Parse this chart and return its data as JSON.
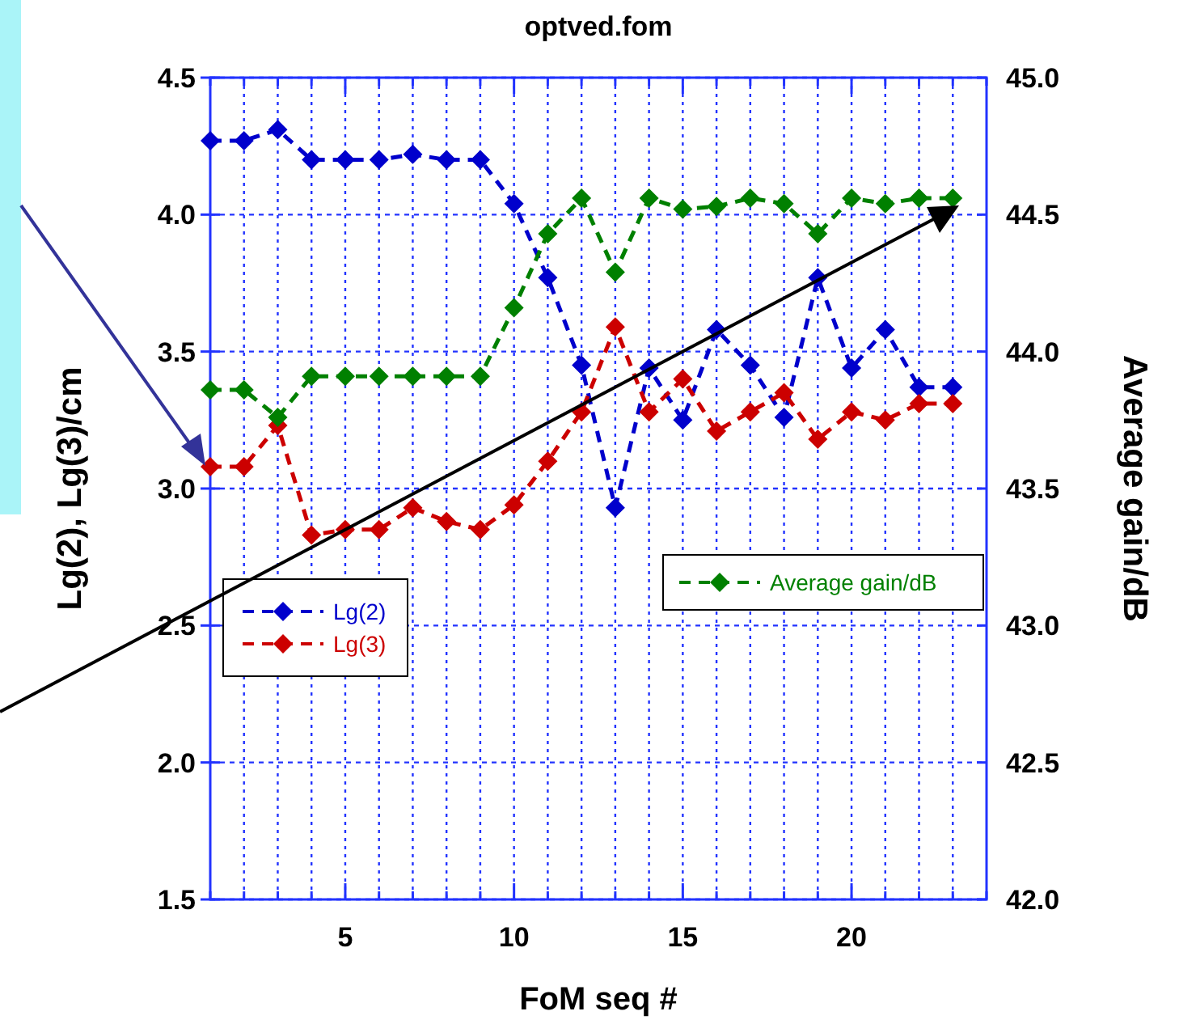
{
  "chart_data": {
    "type": "line",
    "title": "optved.fom",
    "xlabel": "FoM seq #",
    "ylabel": "Lg(2), Lg(3)/cm",
    "y2label": "Average gain/dB",
    "x": [
      1,
      2,
      3,
      4,
      5,
      6,
      7,
      8,
      9,
      10,
      11,
      12,
      13,
      14,
      15,
      16,
      17,
      18,
      19,
      20,
      21,
      22,
      23
    ],
    "series": [
      {
        "name": "Lg(2)",
        "color": "#0000cc",
        "values": [
          4.27,
          4.27,
          4.31,
          4.2,
          4.2,
          4.2,
          4.22,
          4.2,
          4.2,
          4.04,
          3.77,
          3.45,
          2.93,
          3.44,
          3.25,
          3.58,
          3.45,
          3.26,
          3.77,
          3.44,
          3.58,
          3.37,
          3.37
        ]
      },
      {
        "name": "Lg(3)",
        "color": "#cc0000",
        "values": [
          3.08,
          3.08,
          3.23,
          2.83,
          2.85,
          2.85,
          2.93,
          2.88,
          2.85,
          2.94,
          3.1,
          3.28,
          3.59,
          3.28,
          3.4,
          3.21,
          3.28,
          3.35,
          3.18,
          3.28,
          3.25,
          3.31,
          3.31
        ]
      },
      {
        "name": "Average gain/dB",
        "color": "#008000",
        "axis": "y2",
        "values": [
          43.86,
          43.86,
          43.76,
          43.91,
          43.91,
          43.91,
          43.91,
          43.91,
          43.91,
          44.16,
          44.43,
          44.56,
          44.29,
          44.56,
          44.52,
          44.53,
          44.56,
          44.54,
          44.43,
          44.56,
          44.54,
          44.56,
          44.56
        ]
      }
    ],
    "xlim": [
      1,
      24
    ],
    "xticks": [
      {
        "value": 1,
        "label": null
      },
      {
        "value": 2,
        "label": null
      },
      {
        "value": 3,
        "label": null
      },
      {
        "value": 4,
        "label": null
      },
      5,
      {
        "value": 6,
        "label": null
      },
      {
        "value": 7,
        "label": null
      },
      {
        "value": 8,
        "label": null
      },
      {
        "value": 9,
        "label": null
      },
      10,
      {
        "value": 11,
        "label": null
      },
      {
        "value": 12,
        "label": null
      },
      {
        "value": 13,
        "label": null
      },
      {
        "value": 14,
        "label": null
      },
      15,
      {
        "value": 16,
        "label": null
      },
      {
        "value": 17,
        "label": null
      },
      {
        "value": 18,
        "label": null
      },
      {
        "value": 19,
        "label": null
      },
      20,
      {
        "value": 21,
        "label": null
      },
      {
        "value": 22,
        "label": null
      },
      {
        "value": 23,
        "label": null
      },
      {
        "value": 24,
        "label": null
      }
    ],
    "ylim": [
      1.5,
      4.5
    ],
    "yticks": [
      1.5,
      {
        "value": 2,
        "label": "2.0"
      },
      2.5,
      {
        "value": 3,
        "label": "3.0"
      },
      3.5,
      {
        "value": 4,
        "label": "4.0"
      },
      4.5
    ],
    "y2lim": [
      42,
      45
    ],
    "y2ticks": [
      {
        "value": 42,
        "label": "42.0"
      },
      42.5,
      {
        "value": 43,
        "label": "43.0"
      },
      43.5,
      {
        "value": 44,
        "label": "44.0"
      },
      44.5,
      {
        "value": 45,
        "label": "45.0"
      }
    ],
    "grid": true,
    "legend": "left",
    "marker": "diamond",
    "line_style": "dashed"
  }
}
